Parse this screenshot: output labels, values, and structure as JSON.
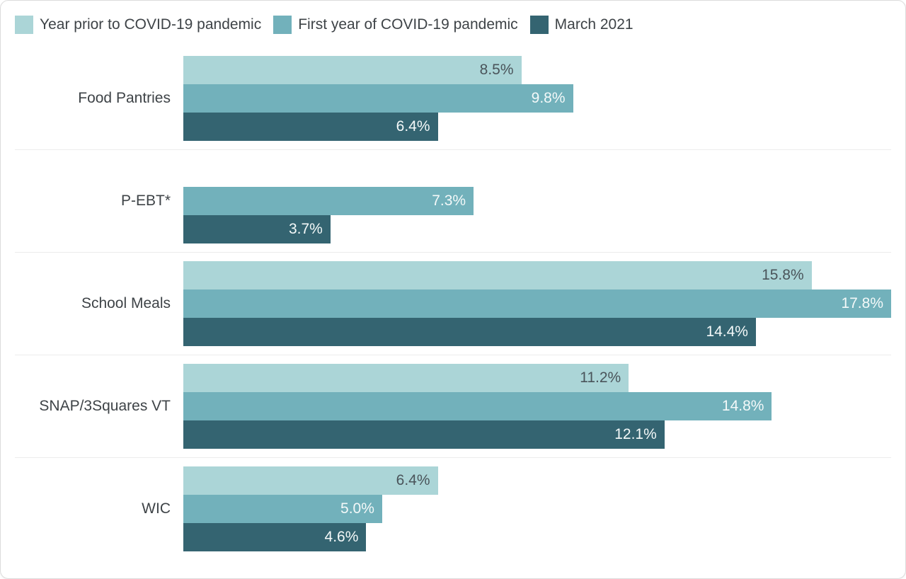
{
  "chart_data": {
    "type": "bar",
    "orientation": "horizontal",
    "categories": [
      "Food Pantries",
      "P-EBT*",
      "School Meals",
      "SNAP/3Squares VT",
      "WIC"
    ],
    "series": [
      {
        "name": "Year prior to COVID-19 pandemic",
        "color": "#abd5d7",
        "label_color": "#4a545a",
        "values": [
          8.5,
          null,
          15.8,
          11.2,
          6.4
        ]
      },
      {
        "name": "First year of COVID-19 pandemic",
        "color": "#72b1bb",
        "label_color": "#f4f9f9",
        "values": [
          9.8,
          7.3,
          17.8,
          14.8,
          5.0
        ]
      },
      {
        "name": "March 2021",
        "color": "#346471",
        "label_color": "#f4f9f9",
        "values": [
          6.4,
          3.7,
          14.4,
          12.1,
          4.6
        ]
      }
    ],
    "value_suffix": "%",
    "value_decimals": 1,
    "xlim": [
      0,
      17.8
    ],
    "legend_position": "top",
    "grid": false,
    "separator_color": "#ececec"
  }
}
